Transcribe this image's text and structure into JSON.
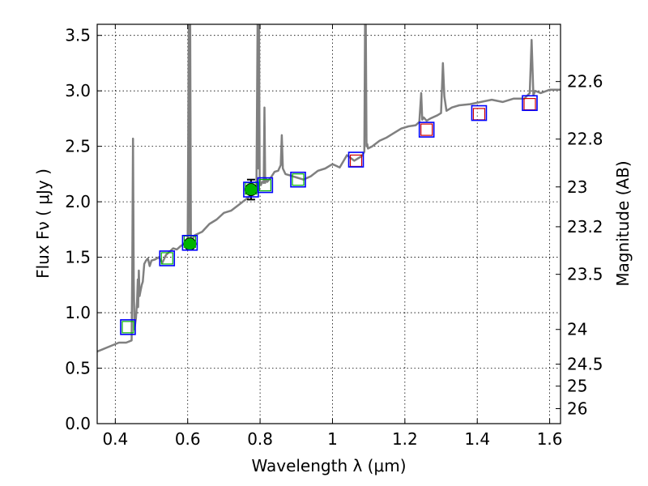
{
  "chart_data": {
    "type": "line",
    "title": "",
    "xlabel": "Wavelength  λ (μm)",
    "ylabel": "Flux  Fν  ( μJy )",
    "y2label": "Magnitude (AB)",
    "xlim": [
      0.35,
      1.63
    ],
    "ylim": [
      0,
      3.6
    ],
    "grid": true,
    "xticks": [
      0.4,
      0.6,
      0.8,
      1,
      1.2,
      1.4,
      1.6
    ],
    "xtick_labels": [
      "0.4",
      "0.6",
      "0.8",
      "1",
      "1.2",
      "1.4",
      "1.6"
    ],
    "yticks": [
      0,
      0.5,
      1,
      1.5,
      2,
      2.5,
      3,
      3.5
    ],
    "ytick_labels": [
      "0.0",
      "0.5",
      "1.0",
      "1.5",
      "2.0",
      "2.5",
      "3.0",
      "3.5"
    ],
    "y2ticks": [
      {
        "label": "22.6",
        "flux": 3.084
      },
      {
        "label": "22.8",
        "flux": 2.565
      },
      {
        "label": "23",
        "flux": 2.134
      },
      {
        "label": "23.2",
        "flux": 1.775
      },
      {
        "label": "23.5",
        "flux": 1.346
      },
      {
        "label": "24",
        "flux": 0.849
      },
      {
        "label": "24.5",
        "flux": 0.536
      },
      {
        "label": "25",
        "flux": 0.338
      },
      {
        "label": "26",
        "flux": 0.135
      }
    ],
    "series": [
      {
        "name": "model spectrum",
        "kind": "line",
        "color": "#808080",
        "x": [
          0.35,
          0.38,
          0.41,
          0.43,
          0.445,
          0.447,
          0.449,
          0.451,
          0.453,
          0.457,
          0.46,
          0.462,
          0.463,
          0.465,
          0.467,
          0.47,
          0.473,
          0.476,
          0.48,
          0.485,
          0.49,
          0.495,
          0.5,
          0.51,
          0.52,
          0.53,
          0.54,
          0.55,
          0.56,
          0.57,
          0.58,
          0.59,
          0.6,
          0.603,
          0.605,
          0.606,
          0.607,
          0.609,
          0.612,
          0.62,
          0.64,
          0.66,
          0.68,
          0.7,
          0.72,
          0.74,
          0.76,
          0.78,
          0.79,
          0.793,
          0.795,
          0.797,
          0.799,
          0.802,
          0.806,
          0.81,
          0.812,
          0.814,
          0.816,
          0.82,
          0.83,
          0.84,
          0.85,
          0.857,
          0.86,
          0.863,
          0.87,
          0.88,
          0.9,
          0.92,
          0.94,
          0.96,
          0.98,
          1.0,
          1.02,
          1.04,
          1.06,
          1.08,
          1.088,
          1.09,
          1.092,
          1.094,
          1.096,
          1.098,
          1.11,
          1.13,
          1.15,
          1.17,
          1.19,
          1.21,
          1.23,
          1.24,
          1.245,
          1.248,
          1.252,
          1.26,
          1.27,
          1.29,
          1.3,
          1.305,
          1.309,
          1.315,
          1.33,
          1.35,
          1.38,
          1.41,
          1.44,
          1.47,
          1.5,
          1.53,
          1.545,
          1.55,
          1.555,
          1.56,
          1.575,
          1.6,
          1.63
        ],
        "y": [
          0.65,
          0.69,
          0.73,
          0.73,
          0.75,
          1.4,
          2.57,
          1.3,
          0.85,
          0.95,
          1.1,
          1.3,
          1.05,
          1.38,
          1.15,
          1.2,
          1.25,
          1.28,
          1.44,
          1.47,
          1.49,
          1.42,
          1.47,
          1.48,
          1.5,
          1.45,
          1.52,
          1.55,
          1.58,
          1.57,
          1.6,
          1.62,
          1.63,
          3.6,
          3.6,
          1.7,
          3.6,
          1.65,
          1.66,
          1.7,
          1.73,
          1.8,
          1.84,
          1.9,
          1.92,
          1.97,
          2.02,
          2.07,
          2.11,
          3.6,
          2.3,
          3.6,
          2.2,
          2.15,
          2.18,
          2.17,
          2.85,
          2.17,
          2.21,
          2.18,
          2.22,
          2.27,
          2.28,
          2.33,
          2.6,
          2.3,
          2.25,
          2.24,
          2.22,
          2.2,
          2.23,
          2.28,
          2.3,
          2.34,
          2.31,
          2.42,
          2.37,
          2.41,
          2.45,
          3.6,
          3.6,
          2.5,
          2.52,
          2.48,
          2.5,
          2.55,
          2.58,
          2.62,
          2.66,
          2.68,
          2.69,
          2.72,
          2.98,
          2.74,
          2.76,
          2.73,
          2.75,
          2.78,
          2.8,
          3.25,
          2.95,
          2.82,
          2.85,
          2.87,
          2.88,
          2.9,
          2.92,
          2.9,
          2.93,
          2.93,
          2.98,
          3.46,
          2.96,
          3.0,
          2.98,
          3.01,
          3.01
        ]
      },
      {
        "name": "observed photometry",
        "kind": "errorbar",
        "color": "#00b400",
        "x": [
          0.606,
          0.775
        ],
        "y": [
          1.62,
          2.11
        ],
        "yerr": [
          0.04,
          0.09
        ]
      },
      {
        "name": "model photometry",
        "kind": "square",
        "color": "#00b400",
        "x": [
          0.435,
          0.543,
          0.606,
          0.775,
          0.814,
          0.905
        ],
        "y": [
          0.87,
          1.49,
          1.64,
          2.12,
          2.15,
          2.2
        ]
      },
      {
        "name": "model photometry (red)",
        "kind": "square",
        "color": "#d00000",
        "x": [
          1.065,
          1.26,
          1.405,
          1.545
        ],
        "y": [
          2.37,
          2.65,
          2.79,
          2.88
        ]
      },
      {
        "name": "photometric bands",
        "kind": "square",
        "color": "#0000ff",
        "x": [
          0.435,
          0.543,
          0.606,
          0.775,
          0.814,
          0.905,
          1.065,
          1.26,
          1.405,
          1.545
        ],
        "y": [
          0.87,
          1.49,
          1.63,
          2.11,
          2.15,
          2.2,
          2.38,
          2.65,
          2.8,
          2.89
        ]
      }
    ]
  }
}
